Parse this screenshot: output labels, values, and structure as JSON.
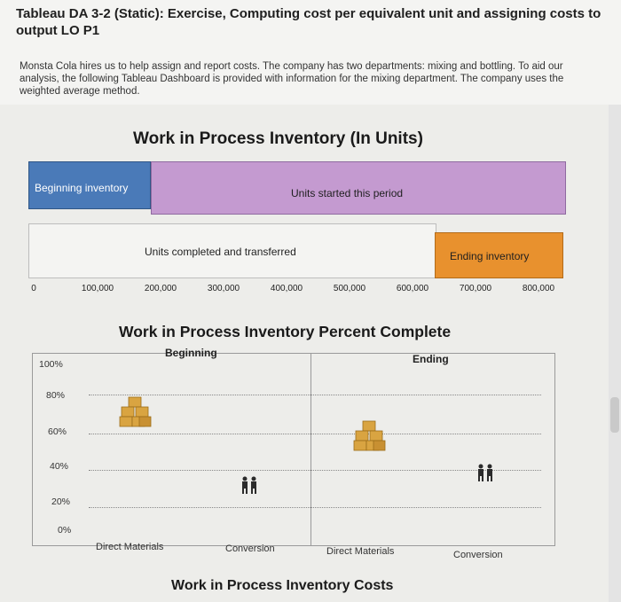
{
  "header": {
    "title": "Tableau DA 3-2 (Static): Exercise, Computing cost per equivalent unit and assigning costs to output LO P1",
    "intro": "Monsta Cola hires us to help assign and report costs. The company has two departments: mixing and bottling. To aid our analysis, the following Tableau Dashboard is provided with information for the mixing department. The company uses the weighted average method."
  },
  "chart1": {
    "title": "Work in Process Inventory (In Units)",
    "bars": {
      "beginning_inventory": "Beginning inventory",
      "units_started": "Units started this period",
      "units_completed": "Units completed and transferred",
      "ending_inventory": "Ending inventory"
    },
    "x_ticks": [
      "0",
      "100,000",
      "200,000",
      "300,000",
      "400,000",
      "500,000",
      "600,000",
      "700,000",
      "800,000"
    ]
  },
  "chart_data": [
    {
      "type": "bar",
      "title": "Work in Process Inventory (In Units)",
      "orientation": "horizontal-stacked",
      "rows": [
        {
          "segments": [
            {
              "name": "Beginning inventory",
              "start": 0,
              "end": 190000
            },
            {
              "name": "Units started this period",
              "start": 190000,
              "end": 860000
            }
          ]
        },
        {
          "segments": [
            {
              "name": "Units completed and transferred",
              "start": 0,
              "end": 650000
            },
            {
              "name": "Ending inventory",
              "start": 650000,
              "end": 860000
            }
          ]
        }
      ],
      "xlim": [
        0,
        860000
      ],
      "x_ticks": [
        "0",
        "100,000",
        "200,000",
        "300,000",
        "400,000",
        "500,000",
        "600,000",
        "700,000",
        "800,000"
      ]
    },
    {
      "type": "scatter",
      "title": "Work in Process Inventory Percent Complete",
      "groups": [
        "Beginning",
        "Ending"
      ],
      "categories": [
        "Direct Materials",
        "Conversion",
        "Direct Materials",
        "Conversion"
      ],
      "values": [
        80,
        30,
        60,
        45
      ],
      "y_ticks": [
        "100%",
        "80%",
        "60%",
        "40%",
        "20%",
        "0%"
      ],
      "ylim": [
        0,
        100
      ]
    }
  ],
  "chart2": {
    "title": "Work in Process Inventory Percent Complete",
    "group_beginning": "Beginning",
    "group_ending": "Ending",
    "y_ticks": [
      "100%",
      "80%",
      "60%",
      "40%",
      "20%",
      "0%"
    ],
    "cats": [
      "Direct Materials",
      "Conversion",
      "Direct Materials",
      "Conversion"
    ]
  },
  "chart3": {
    "title": "Work in Process Inventory Costs"
  },
  "colors": {
    "beginning": "#4a7ab8",
    "started": "#c49ad0",
    "completed": "#f4f4f2",
    "ending": "#e8912e",
    "box": "#d9a441",
    "people": "#2b2b2b"
  },
  "icons": [
    "boxes-icon",
    "people-icon"
  ]
}
